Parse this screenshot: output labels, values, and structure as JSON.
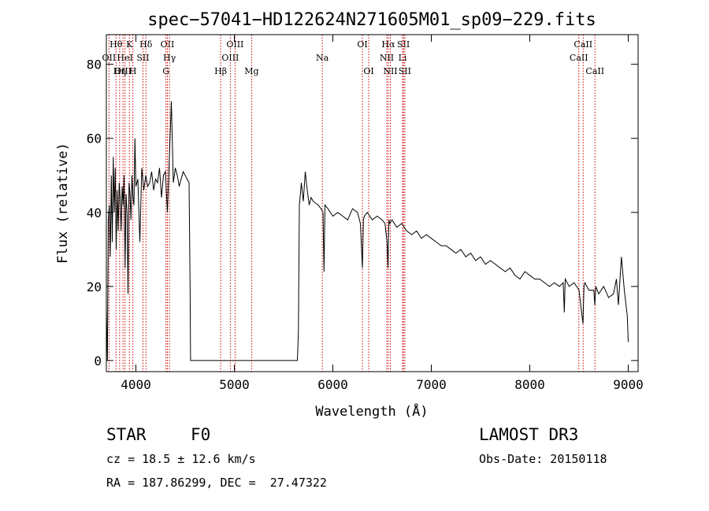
{
  "chart_data": {
    "type": "line",
    "title": "spec−57041−HD122624N271605M01_sp09−229.fits",
    "xlabel": "Wavelength (Å)",
    "ylabel": "Flux (relative)",
    "xlim": [
      3700,
      9100
    ],
    "ylim": [
      -3,
      88
    ],
    "xticks": [
      4000,
      5000,
      6000,
      7000,
      8000,
      9000
    ],
    "yticks": [
      0,
      20,
      40,
      60,
      80
    ],
    "line_color": "#000000",
    "marker_color": "#cc0000",
    "series": [
      {
        "x": [
          3700,
          3710,
          3720,
          3730,
          3740,
          3750,
          3760,
          3770,
          3780,
          3790,
          3800,
          3810,
          3820,
          3830,
          3840,
          3850,
          3860,
          3870,
          3880,
          3890,
          3900,
          3910,
          3920,
          3930,
          3940,
          3950,
          3960,
          3970,
          3980,
          3990,
          4000,
          4020,
          4040,
          4060,
          4080,
          4100,
          4120,
          4140,
          4160,
          4180,
          4200,
          4220,
          4240,
          4260,
          4280,
          4300,
          4320,
          4340,
          4360,
          4380,
          4400,
          4420,
          4440,
          4460,
          4480,
          4500,
          4520,
          4540,
          4550,
          4555,
          4600,
          4800,
          5000,
          5200,
          5400,
          5600,
          5640,
          5650,
          5660,
          5670,
          5680,
          5700,
          5720,
          5740,
          5760,
          5780,
          5800,
          5850,
          5880,
          5900,
          5910,
          5920,
          5950,
          6000,
          6050,
          6100,
          6150,
          6200,
          6250,
          6280,
          6300,
          6310,
          6320,
          6350,
          6400,
          6450,
          6500,
          6530,
          6550,
          6560,
          6565,
          6570,
          6580,
          6600,
          6650,
          6700,
          6750,
          6800,
          6850,
          6900,
          6950,
          7000,
          7050,
          7100,
          7150,
          7200,
          7250,
          7300,
          7350,
          7400,
          7450,
          7500,
          7550,
          7600,
          7650,
          7700,
          7750,
          7800,
          7850,
          7900,
          7950,
          8000,
          8050,
          8100,
          8150,
          8200,
          8250,
          8300,
          8340,
          8350,
          8360,
          8400,
          8450,
          8500,
          8540,
          8550,
          8560,
          8600,
          8650,
          8660,
          8670,
          8700,
          8750,
          8800,
          8850,
          8880,
          8900,
          8930,
          8960,
          8990,
          9000
        ],
        "y": [
          14,
          0,
          38,
          42,
          28,
          50,
          32,
          55,
          40,
          52,
          30,
          46,
          35,
          48,
          44,
          35,
          47,
          42,
          50,
          25,
          45,
          40,
          18,
          48,
          45,
          38,
          50,
          44,
          42,
          60,
          47,
          49,
          32,
          52,
          46,
          50,
          47,
          48,
          51,
          46,
          49,
          48,
          52,
          44,
          50,
          51,
          40,
          55,
          70,
          48,
          52,
          50,
          47,
          49,
          51,
          50,
          49,
          48,
          20,
          0,
          0,
          0,
          0,
          0,
          0,
          0,
          0,
          8,
          42,
          45,
          48,
          43,
          51,
          46,
          42,
          44,
          43,
          42,
          41,
          40,
          24,
          42,
          41,
          39,
          40,
          39,
          38,
          41,
          40,
          37,
          25,
          38,
          39,
          40,
          38,
          39,
          38,
          37,
          32,
          25,
          33,
          38,
          37,
          38,
          36,
          37,
          35,
          34,
          35,
          33,
          34,
          33,
          32,
          31,
          31,
          30,
          29,
          30,
          28,
          29,
          27,
          28,
          26,
          27,
          26,
          25,
          24,
          25,
          23,
          22,
          24,
          23,
          22,
          22,
          21,
          20,
          21,
          20,
          21,
          13,
          22,
          20,
          21,
          19,
          10,
          20,
          21,
          19,
          19,
          15,
          20,
          18,
          20,
          17,
          18,
          22,
          15,
          28,
          19,
          12,
          5
        ]
      }
    ],
    "spectral_lines": [
      {
        "label": "Hθ",
        "wavelength": 3798,
        "row": 0
      },
      {
        "label": "OII",
        "wavelength": 3727,
        "row": 1
      },
      {
        "label": "OIII",
        "wavelength": 3869,
        "row": 2
      },
      {
        "label": "K",
        "wavelength": 3934,
        "row": 0
      },
      {
        "label": "HeI",
        "wavelength": 3889,
        "row": 1
      },
      {
        "label": "Hη",
        "wavelength": 3835,
        "row": 2
      },
      {
        "label": "SII",
        "wavelength": 4072,
        "row": 1
      },
      {
        "label": "H",
        "wavelength": 3969,
        "row": 2
      },
      {
        "label": "Hδ",
        "wavelength": 4102,
        "row": 0
      },
      {
        "label": "OII",
        "wavelength": 4320,
        "row": 0
      },
      {
        "label": "Hγ",
        "wavelength": 4341,
        "row": 1
      },
      {
        "label": "G",
        "wavelength": 4305,
        "row": 2
      },
      {
        "label": "Hβ",
        "wavelength": 4861,
        "row": 2
      },
      {
        "label": "OIII",
        "wavelength": 5007,
        "row": 0
      },
      {
        "label": "OIII",
        "wavelength": 4959,
        "row": 1
      },
      {
        "label": "Mg",
        "wavelength": 5175,
        "row": 2
      },
      {
        "label": "Na",
        "wavelength": 5893,
        "row": 1
      },
      {
        "label": "OI",
        "wavelength": 6300,
        "row": 0
      },
      {
        "label": "OI",
        "wavelength": 6364,
        "row": 2
      },
      {
        "label": "Hα",
        "wavelength": 6563,
        "row": 0
      },
      {
        "label": "NII",
        "wavelength": 6548,
        "row": 1
      },
      {
        "label": "NII",
        "wavelength": 6584,
        "row": 2
      },
      {
        "label": "SII",
        "wavelength": 6717,
        "row": 0
      },
      {
        "label": "Li",
        "wavelength": 6708,
        "row": 1
      },
      {
        "label": "SII",
        "wavelength": 6731,
        "row": 2
      },
      {
        "label": "CaII",
        "wavelength": 8542,
        "row": 0
      },
      {
        "label": "CaII",
        "wavelength": 8498,
        "row": 1
      },
      {
        "label": "CaII",
        "wavelength": 8662,
        "row": 2
      }
    ]
  },
  "info": {
    "class": "STAR",
    "subclass": "F0",
    "survey": "LAMOST DR3",
    "redshift": "cz = 18.5 ± 12.6 km/s",
    "obs_date": "Obs-Date: 20150118",
    "coords": "RA = 187.86299, DEC =  27.47322"
  }
}
